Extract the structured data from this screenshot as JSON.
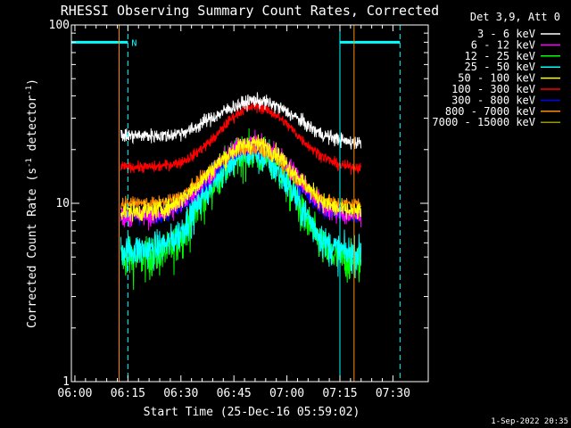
{
  "chart_data": {
    "type": "line",
    "title": "RHESSI Observing Summary Count Rates, Corrected",
    "xlabel": "Start Time (25-Dec-16 05:59:02)",
    "ylabel_prefix": "Corrected Count Rate (s",
    "ylabel_sup1": "-1",
    "ylabel_mid": " detector",
    "ylabel_sup2": "-1",
    "ylabel_suffix": ")",
    "y_scale": "log",
    "ylim": [
      1,
      100
    ],
    "y_ticks": [
      {
        "value": 1,
        "label": "1"
      },
      {
        "value": 10,
        "label": "10"
      },
      {
        "value": 100,
        "label": "100"
      }
    ],
    "x_unit": "minutes after 06:00",
    "xlim": [
      -1,
      100
    ],
    "x_ticks": [
      {
        "value": 0,
        "label": "06:00"
      },
      {
        "value": 15,
        "label": "06:15"
      },
      {
        "value": 30,
        "label": "06:30"
      },
      {
        "value": 45,
        "label": "06:45"
      },
      {
        "value": 60,
        "label": "07:00"
      },
      {
        "value": 75,
        "label": "07:15"
      },
      {
        "value": 90,
        "label": "07:30"
      }
    ],
    "data_start": 13,
    "data_end": 81,
    "legend_header": "Det 3,9, Att 0",
    "legend_placement": "right",
    "series": [
      {
        "name": "3 - 6 keV",
        "color": "#ffffff",
        "values": [
          24,
          24,
          24,
          24,
          24,
          25,
          26,
          29,
          31,
          34,
          36,
          38,
          37,
          35,
          32,
          29,
          26,
          24,
          23,
          22,
          22
        ],
        "noise": 0.09
      },
      {
        "name": "6 - 12 keV",
        "color": "#ff00ff",
        "values": [
          8.5,
          8.5,
          8.5,
          8.7,
          9,
          10,
          11.5,
          13.5,
          16,
          19,
          21,
          22,
          21,
          19,
          16,
          13.5,
          11,
          9.5,
          9,
          8.5,
          8.5
        ],
        "noise": 0.14
      },
      {
        "name": "12 - 25 keV",
        "color": "#00ff00",
        "values": [
          5,
          5,
          5,
          5.2,
          5.5,
          6.5,
          8.5,
          11,
          14,
          17,
          19,
          20,
          18.5,
          16,
          12.5,
          9,
          7,
          5.5,
          5,
          4.8,
          4.8
        ],
        "noise": 0.26
      },
      {
        "name": "25 - 50 keV",
        "color": "#00ffff",
        "values": [
          5.5,
          5.5,
          5.5,
          5.7,
          6,
          7,
          9,
          11.5,
          14.5,
          17,
          19,
          19.5,
          18,
          15.5,
          12.5,
          9.5,
          7.5,
          6,
          5.5,
          5.3,
          5.3
        ],
        "noise": 0.22
      },
      {
        "name": "50 - 100 keV",
        "color": "#ffff00",
        "values": [
          9,
          9,
          9,
          9.2,
          9.5,
          10.5,
          12,
          14,
          16.5,
          19,
          21,
          22,
          21,
          19,
          16,
          13.5,
          11.5,
          10,
          9.3,
          9,
          9
        ],
        "noise": 0.12
      },
      {
        "name": "100 - 300 keV",
        "color": "#ff0000",
        "values": [
          16,
          16,
          16,
          16,
          16.5,
          17,
          18.5,
          21,
          24,
          29,
          33,
          35,
          34,
          31,
          27,
          23,
          20,
          18,
          16.5,
          16,
          16
        ],
        "noise": 0.07
      },
      {
        "name": "300 - 800 keV",
        "color": "#0000ff",
        "values": [
          8.5,
          8.5,
          8.5,
          8.7,
          9,
          9.8,
          11,
          13,
          15,
          18,
          20,
          21,
          20,
          18,
          15,
          12.5,
          10.5,
          9.2,
          8.7,
          8.5,
          8.5
        ],
        "noise": 0.11
      },
      {
        "name": "800 - 7000 keV",
        "color": "#ff8c00",
        "values": [
          10,
          10,
          10,
          10,
          10.3,
          11,
          12.5,
          14.5,
          16.5,
          18.5,
          20,
          20.5,
          19.5,
          17.5,
          15,
          13,
          11.5,
          10.5,
          10,
          10,
          10
        ],
        "noise": 0.08
      },
      {
        "name": "7000 - 15000 keV",
        "color": "#999900",
        "values": [],
        "noise": 0
      }
    ],
    "annotations": [
      {
        "type": "hline",
        "y": 80,
        "x_from": -1,
        "x_to": 15,
        "color": "#00ffff"
      },
      {
        "type": "vline",
        "x": 15,
        "style": "dashed",
        "color": "#00ffff"
      },
      {
        "type": "text",
        "x": 16,
        "y": 80,
        "text": "N",
        "color": "#00ffff"
      },
      {
        "type": "vline",
        "x": 75,
        "style": "solid",
        "color": "#00ffff"
      },
      {
        "type": "hline",
        "y": 80,
        "x_from": 75,
        "x_to": 92,
        "color": "#00ffff"
      },
      {
        "type": "vline",
        "x": 92,
        "style": "dashed",
        "color": "#00ffff"
      },
      {
        "type": "vline",
        "x": -1,
        "style": "solid",
        "color": "#00ffff"
      },
      {
        "type": "vline",
        "x": 12.5,
        "style": "solid",
        "color": "#ff8c00"
      },
      {
        "type": "vline",
        "x": 79,
        "style": "solid",
        "color": "#ff8c00"
      }
    ]
  },
  "footer_timestamp": "1-Sep-2022 20:35"
}
